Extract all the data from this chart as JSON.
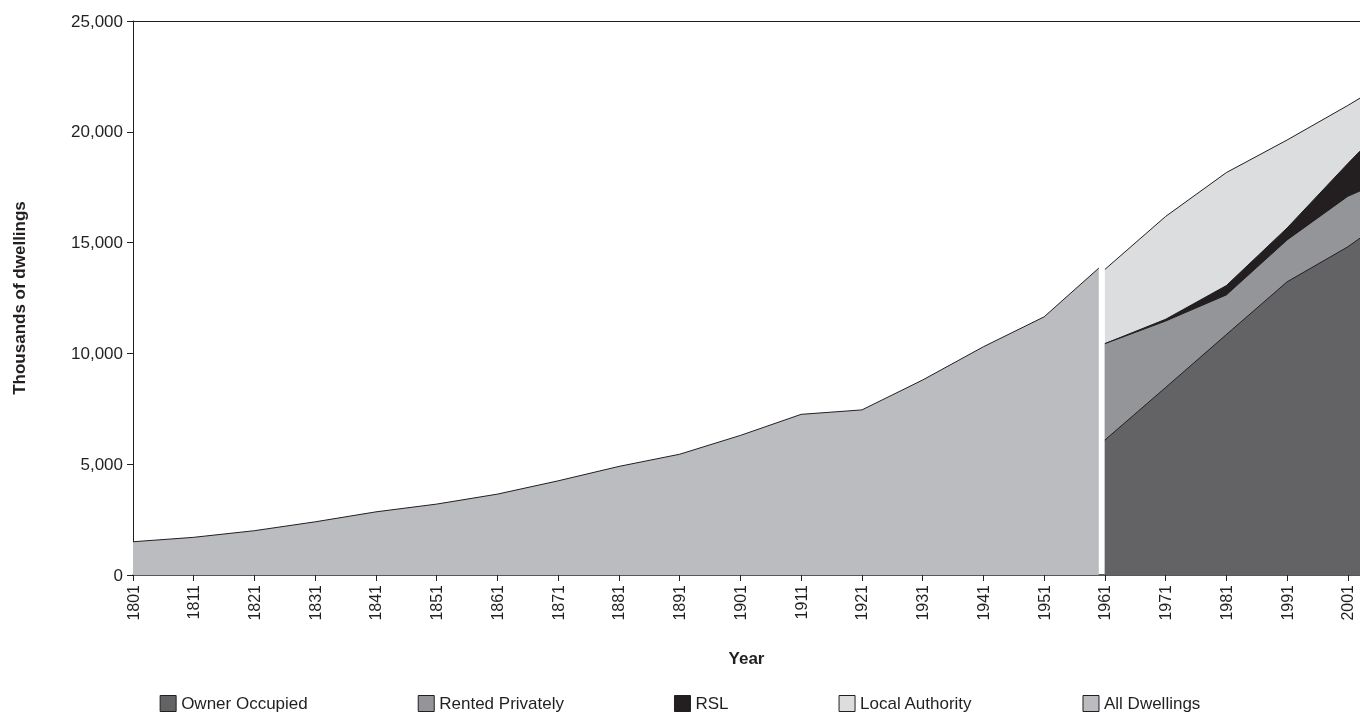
{
  "chart_data": {
    "type": "area",
    "stacked": true,
    "xlabel": "Year",
    "ylabel": "Thousands of dwellings",
    "xlim": [
      1801,
      2003
    ],
    "xticks": [
      1801,
      1811,
      1821,
      1831,
      1841,
      1851,
      1861,
      1871,
      1881,
      1891,
      1901,
      1911,
      1921,
      1931,
      1941,
      1951,
      1961,
      1971,
      1981,
      1991,
      2001
    ],
    "ylim": [
      0,
      25000
    ],
    "yticks": [
      {
        "value": 0,
        "label": "0"
      },
      {
        "value": 5000,
        "label": "5,000"
      },
      {
        "value": 10000,
        "label": "10,000"
      },
      {
        "value": 15000,
        "label": "15,000"
      },
      {
        "value": 20000,
        "label": "20,000"
      },
      {
        "value": 25000,
        "label": "25,000"
      }
    ],
    "grid": false,
    "legend": "bottom",
    "series": [
      {
        "name": "Owner Occupied",
        "color": "#636366",
        "x": [
          1961,
          1971,
          1981,
          1991,
          2001,
          2003
        ],
        "values": [
          6090,
          8460,
          10850,
          13230,
          14810,
          15200
        ]
      },
      {
        "name": "Rented Privately",
        "color": "#939598",
        "x": [
          1961,
          1971,
          1981,
          1991,
          2001,
          2003
        ],
        "values": [
          4350,
          3000,
          1790,
          1890,
          2280,
          2130
        ]
      },
      {
        "name": "RSL",
        "color": "#231f20",
        "x": [
          1961,
          1971,
          1981,
          1991,
          2001,
          2003
        ],
        "values": [
          0,
          80,
          420,
          540,
          1480,
          1800
        ]
      },
      {
        "name": "Local Authority",
        "color": "#dcdddf",
        "x": [
          1961,
          1971,
          1981,
          1991,
          2001,
          2003
        ],
        "values": [
          3350,
          4640,
          5100,
          3970,
          2620,
          2390
        ]
      },
      {
        "name": "All Dwellings",
        "color": "#bbbcc0",
        "x": [
          1801,
          1811,
          1821,
          1831,
          1841,
          1851,
          1861,
          1871,
          1881,
          1891,
          1901,
          1911,
          1921,
          1931,
          1941,
          1951,
          1960
        ],
        "values": [
          1500,
          1700,
          2000,
          2400,
          2850,
          3200,
          3650,
          4250,
          4900,
          5450,
          6300,
          7250,
          7450,
          8800,
          10300,
          11650,
          13850
        ]
      }
    ]
  }
}
